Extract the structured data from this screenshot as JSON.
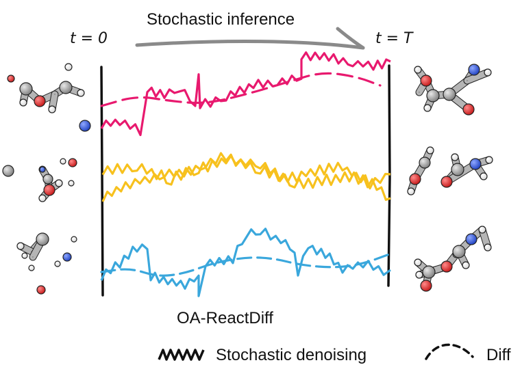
{
  "header": {
    "title": "Stochastic inference",
    "t_start": "t = 0",
    "t_end": "t = T"
  },
  "footer": {
    "model_name": "OA-ReactDiff"
  },
  "legend": {
    "stochastic": "Stochastic denoising",
    "diffusion": "Diff"
  },
  "colors": {
    "magenta": "#e8196e",
    "yellow": "#f7c11e",
    "cyan": "#3aa7dc",
    "carbon": "#9a9a9a",
    "oxygen": "#e32a2a",
    "nitrogen": "#2f5bd9",
    "hydrogen": "#ffffff"
  }
}
